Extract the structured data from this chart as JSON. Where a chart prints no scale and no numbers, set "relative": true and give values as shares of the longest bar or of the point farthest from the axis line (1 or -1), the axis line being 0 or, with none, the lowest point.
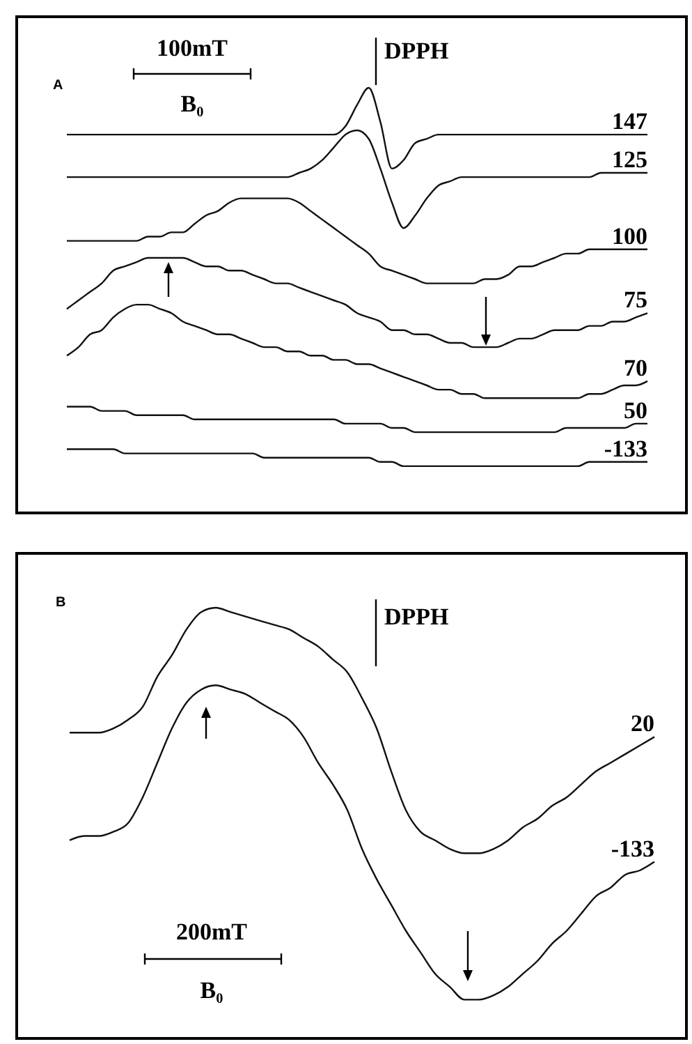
{
  "chart_data": [
    {
      "type": "line",
      "relative": true,
      "categories": [
        null,
        null,
        null,
        null,
        null,
        null,
        null,
        null,
        null,
        null,
        null,
        null,
        null,
        null,
        null,
        null,
        null,
        null,
        null,
        null,
        null,
        null,
        null,
        null,
        null,
        null,
        null,
        null,
        null,
        null,
        null,
        null,
        null,
        null,
        null,
        null,
        null,
        null,
        null,
        null,
        null,
        null,
        null,
        null,
        null,
        null,
        null,
        null,
        null,
        null,
        null
      ],
      "annotations": [
        "A",
        "100mT",
        "B₀",
        "DPPH"
      ],
      "series": [
        {
          "name": "147",
          "color": "#111111",
          "values": [
            0.89,
            0.89,
            0.89,
            0.89,
            0.89,
            0.89,
            0.89,
            0.89,
            0.89,
            0.89,
            0.89,
            0.89,
            0.89,
            0.89,
            0.89,
            0.89,
            0.89,
            0.89,
            0.89,
            0.89,
            0.89,
            0.89,
            0.89,
            0.89,
            0.91,
            0.96,
            1.0,
            0.92,
            0.81,
            0.83,
            0.87,
            0.88,
            0.89,
            0.89,
            0.89,
            0.89,
            0.89,
            0.89,
            0.89,
            0.89,
            0.89,
            0.89,
            0.89,
            0.89,
            0.89,
            0.89,
            0.89,
            0.89,
            0.89,
            0.89,
            0.89
          ]
        },
        {
          "name": "125",
          "color": "#111111",
          "values": [
            0.79,
            0.79,
            0.79,
            0.79,
            0.79,
            0.79,
            0.79,
            0.79,
            0.79,
            0.79,
            0.79,
            0.79,
            0.79,
            0.79,
            0.79,
            0.79,
            0.79,
            0.79,
            0.79,
            0.79,
            0.8,
            0.81,
            0.83,
            0.86,
            0.89,
            0.9,
            0.88,
            0.81,
            0.73,
            0.67,
            0.7,
            0.74,
            0.77,
            0.78,
            0.79,
            0.79,
            0.79,
            0.79,
            0.79,
            0.79,
            0.79,
            0.79,
            0.79,
            0.79,
            0.79,
            0.79,
            0.8,
            0.8,
            0.8,
            0.8,
            0.8
          ]
        },
        {
          "name": "100",
          "color": "#111111",
          "values": [
            0.64,
            0.64,
            0.64,
            0.64,
            0.64,
            0.64,
            0.64,
            0.65,
            0.65,
            0.66,
            0.66,
            0.68,
            0.7,
            0.71,
            0.73,
            0.74,
            0.74,
            0.74,
            0.74,
            0.74,
            0.73,
            0.71,
            0.69,
            0.67,
            0.65,
            0.63,
            0.61,
            0.58,
            0.57,
            0.56,
            0.55,
            0.54,
            0.54,
            0.54,
            0.54,
            0.54,
            0.55,
            0.55,
            0.56,
            0.58,
            0.58,
            0.59,
            0.6,
            0.61,
            0.61,
            0.62,
            0.62,
            0.62,
            0.62,
            0.62,
            0.62
          ]
        },
        {
          "name": "75",
          "color": "#111111",
          "values": [
            0.48,
            0.5,
            0.52,
            0.54,
            0.57,
            0.58,
            0.59,
            0.6,
            0.6,
            0.6,
            0.6,
            0.59,
            0.58,
            0.58,
            0.57,
            0.57,
            0.56,
            0.55,
            0.54,
            0.54,
            0.53,
            0.52,
            0.51,
            0.5,
            0.49,
            0.47,
            0.46,
            0.45,
            0.43,
            0.43,
            0.42,
            0.42,
            0.41,
            0.4,
            0.4,
            0.39,
            0.39,
            0.39,
            0.4,
            0.41,
            0.41,
            0.42,
            0.43,
            0.43,
            0.43,
            0.44,
            0.44,
            0.45,
            0.45,
            0.46,
            0.47
          ]
        },
        {
          "name": "70",
          "color": "#111111",
          "values": [
            0.37,
            0.39,
            0.42,
            0.43,
            0.46,
            0.48,
            0.49,
            0.49,
            0.48,
            0.47,
            0.45,
            0.44,
            0.43,
            0.42,
            0.42,
            0.41,
            0.4,
            0.39,
            0.39,
            0.38,
            0.38,
            0.37,
            0.37,
            0.36,
            0.36,
            0.35,
            0.35,
            0.34,
            0.33,
            0.32,
            0.31,
            0.3,
            0.29,
            0.29,
            0.28,
            0.28,
            0.27,
            0.27,
            0.27,
            0.27,
            0.27,
            0.27,
            0.27,
            0.27,
            0.27,
            0.28,
            0.28,
            0.29,
            0.3,
            0.3,
            0.31
          ]
        },
        {
          "name": "50",
          "color": "#111111",
          "values": [
            0.25,
            0.25,
            0.25,
            0.24,
            0.24,
            0.24,
            0.23,
            0.23,
            0.23,
            0.23,
            0.23,
            0.22,
            0.22,
            0.22,
            0.22,
            0.22,
            0.22,
            0.22,
            0.22,
            0.22,
            0.22,
            0.22,
            0.22,
            0.22,
            0.21,
            0.21,
            0.21,
            0.21,
            0.2,
            0.2,
            0.19,
            0.19,
            0.19,
            0.19,
            0.19,
            0.19,
            0.19,
            0.19,
            0.19,
            0.19,
            0.19,
            0.19,
            0.19,
            0.2,
            0.2,
            0.2,
            0.2,
            0.2,
            0.2,
            0.21,
            0.21
          ]
        },
        {
          "name": "-133",
          "color": "#111111",
          "values": [
            0.15,
            0.15,
            0.15,
            0.15,
            0.15,
            0.14,
            0.14,
            0.14,
            0.14,
            0.14,
            0.14,
            0.14,
            0.14,
            0.14,
            0.14,
            0.14,
            0.14,
            0.13,
            0.13,
            0.13,
            0.13,
            0.13,
            0.13,
            0.13,
            0.13,
            0.13,
            0.13,
            0.12,
            0.12,
            0.11,
            0.11,
            0.11,
            0.11,
            0.11,
            0.11,
            0.11,
            0.11,
            0.11,
            0.11,
            0.11,
            0.11,
            0.11,
            0.11,
            0.11,
            0.11,
            0.12,
            0.12,
            0.12,
            0.12,
            0.12,
            0.12
          ]
        }
      ]
    },
    {
      "type": "line",
      "relative": true,
      "categories": [
        null,
        null,
        null,
        null,
        null,
        null,
        null,
        null,
        null,
        null,
        null,
        null,
        null,
        null,
        null,
        null,
        null,
        null,
        null,
        null,
        null,
        null,
        null,
        null,
        null,
        null,
        null,
        null,
        null,
        null,
        null,
        null,
        null,
        null,
        null,
        null,
        null,
        null,
        null,
        null,
        null
      ],
      "annotations": [
        "B",
        "200mT",
        "B₀",
        "DPPH"
      ],
      "series": [
        {
          "name": "20",
          "color": "#111111",
          "values": [
            0.71,
            0.71,
            0.71,
            0.72,
            0.74,
            0.77,
            0.84,
            0.89,
            0.95,
            0.99,
            1.0,
            0.99,
            0.98,
            0.97,
            0.96,
            0.95,
            0.93,
            0.91,
            0.88,
            0.85,
            0.79,
            0.72,
            0.62,
            0.53,
            0.48,
            0.46,
            0.44,
            0.43,
            0.43,
            0.44,
            0.46,
            0.49,
            0.51,
            0.54,
            0.56,
            0.59,
            0.62,
            0.64,
            0.66,
            0.68,
            0.7
          ]
        },
        {
          "name": "-133",
          "color": "#111111",
          "values": [
            0.46,
            0.47,
            0.47,
            0.48,
            0.5,
            0.56,
            0.64,
            0.72,
            0.78,
            0.81,
            0.82,
            0.81,
            0.8,
            0.78,
            0.76,
            0.74,
            0.7,
            0.64,
            0.59,
            0.53,
            0.44,
            0.37,
            0.31,
            0.25,
            0.2,
            0.15,
            0.12,
            0.09,
            0.09,
            0.1,
            0.12,
            0.15,
            0.18,
            0.22,
            0.25,
            0.29,
            0.33,
            0.35,
            0.38,
            0.39,
            0.41
          ]
        }
      ]
    }
  ]
}
